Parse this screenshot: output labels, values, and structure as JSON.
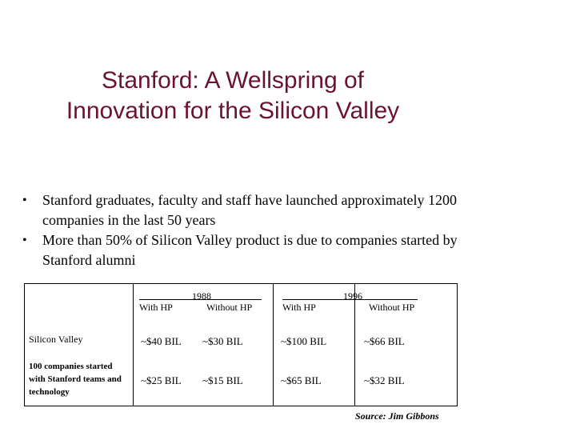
{
  "title": {
    "line1": "Stanford: A Wellspring of",
    "line2": "Innovation for the Silicon Valley"
  },
  "bullets": [
    "Stanford graduates, faculty and staff have launched approximately 1200 companies in the last 50 years",
    "More than 50% of Silicon Valley product is due to companies started by Stanford alumni"
  ],
  "table": {
    "groups": [
      {
        "year": "1988",
        "with": "With HP",
        "without": "Without HP"
      },
      {
        "year": "1996",
        "with": "With HP",
        "without": "Without HP"
      }
    ],
    "rows": [
      {
        "label": "Silicon Valley",
        "values": [
          "~$40 BIL",
          "~$30 BIL",
          "~$100 BIL",
          "~$66 BIL"
        ]
      },
      {
        "label": "100 companies started with Stanford teams and technology",
        "values": [
          "~$25 BIL",
          "~$15 BIL",
          "~$65 BIL",
          "~$32 BIL"
        ]
      }
    ]
  },
  "source": "Source: Jim Gibbons",
  "colors": {
    "title": "#6b1233"
  }
}
